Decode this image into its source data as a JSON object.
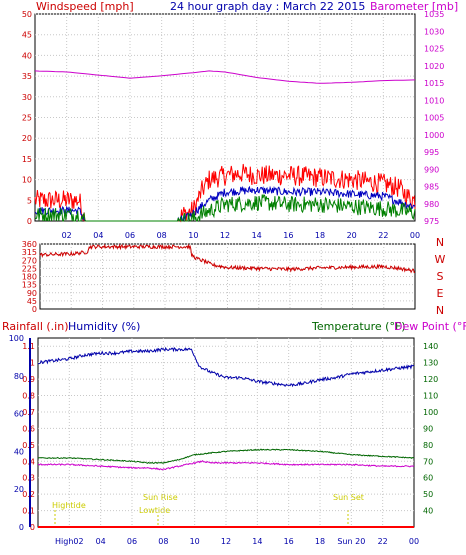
{
  "chart_data": [
    {
      "type": "line",
      "panel": "wind_pressure",
      "title": "24 hour graph day : March 22 2015",
      "left_axis_label": "Windspeed [mph]",
      "right_axis_label": "Barometer [mb]",
      "x_ticks": [
        "02",
        "04",
        "06",
        "08",
        "10",
        "12",
        "14",
        "16",
        "18",
        "20",
        "22",
        "00"
      ],
      "x_range_hours": [
        0,
        24
      ],
      "left_ticks": [
        0,
        5,
        10,
        15,
        20,
        25,
        30,
        35,
        40,
        45,
        50
      ],
      "left_ylim": [
        0,
        50
      ],
      "right_ticks": [
        975,
        980,
        985,
        990,
        995,
        1000,
        1005,
        1010,
        1015,
        1020,
        1025,
        1030,
        1035
      ],
      "right_ylim": [
        975,
        1035
      ],
      "grid": true,
      "colors": {
        "gust": "#ff0000",
        "avg": "#0000c0",
        "wind": "#008000",
        "barometer": "#cc00cc"
      },
      "series": [
        {
          "key": "barometer",
          "axis": "right",
          "x": [
            0,
            2,
            4,
            6,
            8,
            10,
            11,
            12,
            14,
            16,
            18,
            20,
            22,
            24
          ],
          "y": [
            1018.5,
            1018.2,
            1017.3,
            1016.4,
            1017.1,
            1018.0,
            1018.5,
            1018.2,
            1016.6,
            1015.5,
            1014.9,
            1015.2,
            1015.7,
            1015.9
          ]
        },
        {
          "key": "gust",
          "axis": "left",
          "noise": 2.5,
          "x": [
            0,
            1,
            2,
            2.8,
            3.2,
            5,
            7,
            9,
            9.3,
            10,
            10.5,
            11,
            12,
            13,
            14,
            16,
            18,
            20,
            21,
            22,
            23,
            23.5,
            24
          ],
          "y": [
            5,
            5,
            5,
            5,
            0,
            0,
            0,
            0,
            1.5,
            2.5,
            7,
            10,
            11,
            11.5,
            11,
            11,
            10.5,
            10,
            9.5,
            9,
            8,
            6,
            5
          ]
        },
        {
          "key": "avg",
          "axis": "left",
          "noise": 1.0,
          "x": [
            0,
            1,
            2,
            2.8,
            3.2,
            9,
            9.5,
            10,
            11,
            12,
            14,
            16,
            18,
            20,
            22,
            23.5,
            24
          ],
          "y": [
            2.5,
            2.5,
            2.5,
            2.5,
            0,
            0,
            0.5,
            2,
            5,
            7,
            7.5,
            7,
            7,
            6.5,
            6,
            4,
            3.5
          ]
        },
        {
          "key": "wind",
          "axis": "left",
          "noise": 2.0,
          "x": [
            0,
            2,
            2.8,
            3.2,
            9,
            10,
            11,
            12,
            14,
            16,
            18,
            20,
            22,
            24
          ],
          "y": [
            1.5,
            1.5,
            1.5,
            0,
            0,
            0.5,
            2.5,
            4,
            4.5,
            4,
            4,
            3.5,
            3,
            2
          ]
        }
      ]
    },
    {
      "type": "line",
      "panel": "wind_direction",
      "left_ticks": [
        0,
        45,
        90,
        135,
        180,
        225,
        270,
        315,
        360
      ],
      "left_ylim": [
        0,
        360
      ],
      "right_labels": [
        "N",
        "W",
        "S",
        "E",
        "N"
      ],
      "grid": true,
      "colors": {
        "direction": "#cc0000"
      },
      "series": [
        {
          "key": "direction",
          "axis": "left",
          "noise": 10,
          "x": [
            0,
            2,
            3,
            3.2,
            9.6,
            9.7,
            10,
            10.5,
            11,
            12,
            14,
            16,
            18,
            20,
            22,
            23,
            24
          ],
          "y": [
            300,
            305,
            315,
            345,
            345,
            300,
            280,
            265,
            245,
            230,
            225,
            220,
            228,
            232,
            235,
            225,
            210
          ]
        }
      ]
    },
    {
      "type": "line",
      "panel": "rain_humidity_temp",
      "rain_label": "Rainfall (.in)",
      "humidity_label": "Humidity (%)",
      "temperature_label": "Temperature (°F)",
      "dewpoint_label": "Dew Point (°F)",
      "left_ticks": [
        0,
        0.1,
        0.2,
        0.3,
        0.4,
        0.5,
        0.6,
        0.7,
        0.8,
        0.9,
        1,
        1.1
      ],
      "left_tick_labels": [
        "0",
        "0.1",
        "0.2",
        "0.3",
        "0.4",
        "0.5",
        "0.6",
        "0.7",
        "0.8",
        "0.9",
        "1",
        "1.1"
      ],
      "left_ylim": [
        0,
        1.15
      ],
      "humidity_ticks": [
        0,
        20,
        40,
        60,
        80,
        100
      ],
      "humidity_ylim": [
        0,
        100
      ],
      "right_ticks": [
        40,
        50,
        60,
        70,
        80,
        90,
        100,
        110,
        120,
        130,
        140
      ],
      "right_ylim": [
        30,
        145
      ],
      "x_ticks": [
        "High02",
        "04",
        "06",
        "08",
        "10",
        "12",
        "14",
        "16",
        "18",
        "Sun 20",
        "22",
        "00"
      ],
      "annotations": [
        "Hightide",
        "Sun Rise",
        "Lowtide",
        "Sun Set"
      ],
      "grid": true,
      "colors": {
        "rain": "#ff0000",
        "humidity": "#0000aa",
        "temperature": "#006600",
        "dewpoint": "#cc00cc",
        "annotation": "#cccc00"
      },
      "series": [
        {
          "key": "humidity",
          "axis": "humidity",
          "noise": 0.8,
          "x": [
            0,
            1,
            2,
            3,
            4,
            5,
            6,
            7,
            8,
            9,
            9.8,
            10.3,
            11,
            12,
            13,
            14,
            15,
            16,
            17,
            18,
            19,
            20,
            21,
            22,
            23,
            24
          ],
          "y": [
            87,
            88,
            89,
            91,
            92,
            92,
            93,
            93,
            94,
            94,
            94,
            85,
            82,
            79,
            79,
            77,
            76,
            75,
            76,
            78,
            79,
            81,
            82,
            83,
            84,
            85
          ]
        },
        {
          "key": "temperature",
          "axis": "right",
          "noise": 0.3,
          "x": [
            0,
            2,
            4,
            6,
            7,
            8,
            9,
            10,
            11,
            12,
            14,
            15,
            16,
            18,
            20,
            22,
            24
          ],
          "y": [
            72,
            72,
            71,
            70,
            69,
            69,
            71,
            74,
            75,
            76,
            77,
            77,
            77,
            76,
            74,
            73,
            72
          ]
        },
        {
          "key": "dewpoint",
          "axis": "right",
          "noise": 0.4,
          "x": [
            0,
            2,
            4,
            6,
            7,
            8,
            9,
            10,
            10.5,
            11,
            12,
            14,
            16,
            18,
            20,
            22,
            24
          ],
          "y": [
            68,
            68,
            67,
            66,
            66,
            65,
            67,
            69,
            70,
            69,
            69,
            69,
            68,
            68,
            68,
            67,
            67
          ]
        },
        {
          "key": "rain",
          "axis": "left",
          "x": [
            0,
            24
          ],
          "y": [
            0,
            0
          ]
        }
      ]
    }
  ]
}
